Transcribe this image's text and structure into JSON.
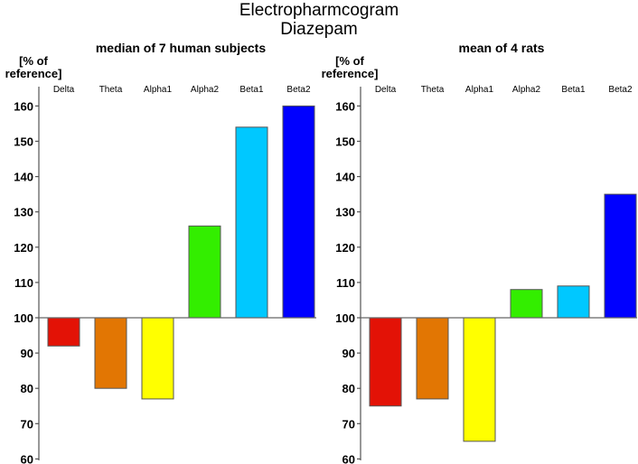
{
  "title": [
    "Electropharmcogram",
    "Diazepam"
  ],
  "chart_data": [
    {
      "type": "bar",
      "title": "median of 7 human subjects",
      "ylabel": [
        "[% of",
        "reference]"
      ],
      "xlabel": "",
      "categories": [
        "Delta",
        "Theta",
        "Alpha1",
        "Alpha2",
        "Beta1",
        "Beta2"
      ],
      "values": [
        92,
        80,
        77,
        126,
        154,
        160
      ],
      "colors": [
        "#e31206",
        "#e27603",
        "#ffff00",
        "#33ee00",
        "#00c8ff",
        "#0000ff"
      ],
      "baseline": 100,
      "ylim": [
        60,
        165
      ],
      "yticks": [
        60,
        70,
        80,
        90,
        100,
        110,
        120,
        130,
        140,
        150,
        160
      ],
      "grid": false,
      "category_labels_position": "top"
    },
    {
      "type": "bar",
      "title": "mean of 4 rats",
      "ylabel": [
        "[% of",
        "reference]"
      ],
      "xlabel": "",
      "categories": [
        "Delta",
        "Theta",
        "Alpha1",
        "Alpha2",
        "Beta1",
        "Beta2"
      ],
      "values": [
        75,
        77,
        65,
        108,
        109,
        135
      ],
      "colors": [
        "#e31206",
        "#e27603",
        "#ffff00",
        "#33ee00",
        "#00c8ff",
        "#0000ff"
      ],
      "baseline": 100,
      "ylim": [
        60,
        165
      ],
      "yticks": [
        60,
        70,
        80,
        90,
        100,
        110,
        120,
        130,
        140,
        150,
        160
      ],
      "grid": false,
      "category_labels_position": "top"
    }
  ]
}
